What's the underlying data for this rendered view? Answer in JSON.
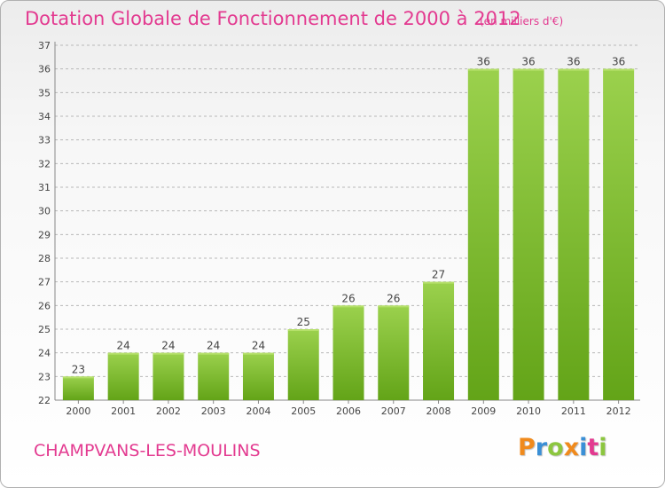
{
  "chart_data": {
    "type": "bar",
    "title": "Dotation Globale de Fonctionnement de 2000 à 2012",
    "subtitle": "(en milliers d'€)",
    "categories": [
      "2000",
      "2001",
      "2002",
      "2003",
      "2004",
      "2005",
      "2006",
      "2007",
      "2008",
      "2009",
      "2010",
      "2011",
      "2012"
    ],
    "values": [
      23,
      24,
      24,
      24,
      24,
      25,
      26,
      26,
      27,
      36,
      36,
      36,
      36
    ],
    "ylim": [
      22,
      37
    ],
    "yticks": [
      22,
      23,
      24,
      25,
      26,
      27,
      28,
      29,
      30,
      31,
      32,
      33,
      34,
      35,
      36,
      37
    ],
    "grid": true,
    "xlabel": "",
    "ylabel": "",
    "bar_color": "#7dbd2e",
    "grid_color": "#b8b8b8"
  },
  "commune": "CHAMPVANS-LES-MOULINS",
  "logo": {
    "letters": [
      "P",
      "r",
      "o",
      "x",
      "i",
      "t",
      "i"
    ],
    "colors": [
      "#f08a1c",
      "#3a8fd6",
      "#8cc63f",
      "#f08a1c",
      "#3a8fd6",
      "#e33a90",
      "#8cc63f"
    ]
  },
  "colors": {
    "accent": "#e33a90"
  }
}
